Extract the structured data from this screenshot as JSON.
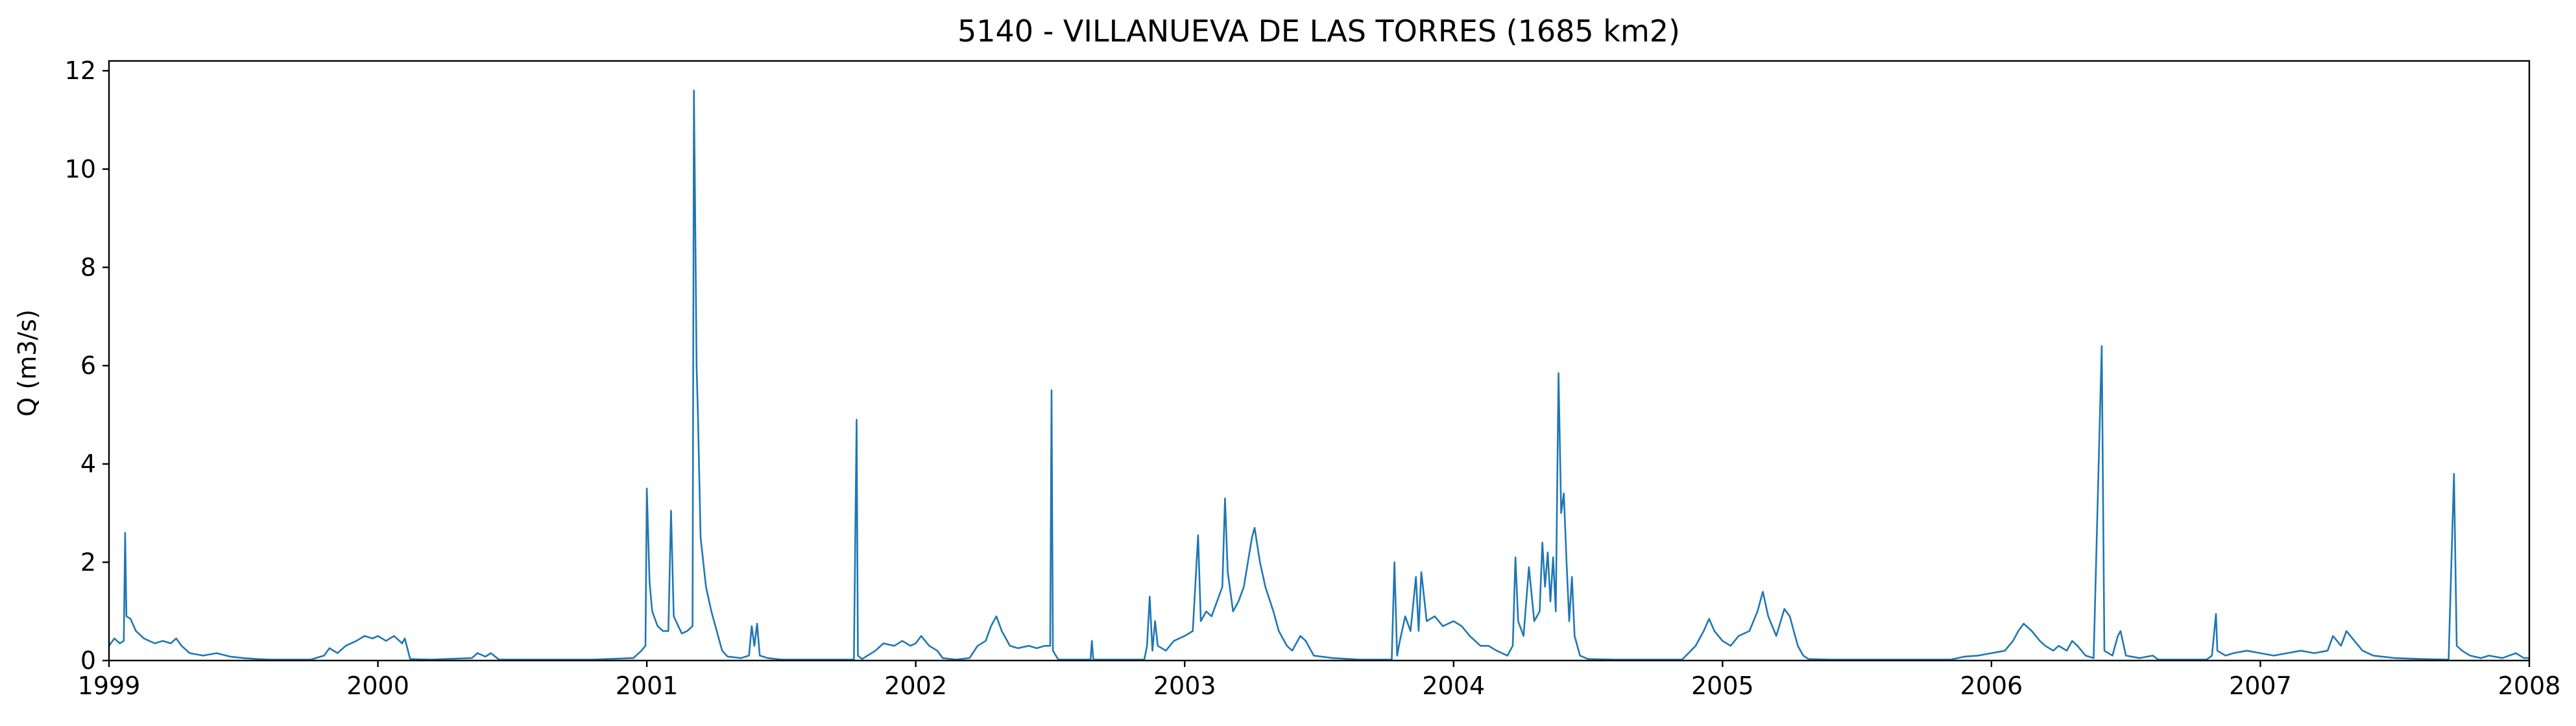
{
  "colors": {
    "series": "#1f77b4",
    "axes": "#000000",
    "background": "#ffffff"
  },
  "chart_data": {
    "type": "line",
    "title": "5140 - VILLANUEVA DE LAS TORRES (1685 km2)",
    "xlabel": "",
    "ylabel": "Q (m3/s)",
    "xlim": [
      1999.0,
      2008.0
    ],
    "ylim": [
      0,
      12.2
    ],
    "x_ticks": [
      1999,
      2000,
      2001,
      2002,
      2003,
      2004,
      2005,
      2006,
      2007,
      2008
    ],
    "x_tick_labels": [
      "1999",
      "2000",
      "2001",
      "2002",
      "2003",
      "2004",
      "2005",
      "2006",
      "2007",
      "2008"
    ],
    "y_ticks": [
      0,
      2,
      4,
      6,
      8,
      10,
      12
    ],
    "y_tick_labels": [
      "0",
      "2",
      "4",
      "6",
      "8",
      "10",
      "12"
    ],
    "grid": false,
    "legend": "none",
    "series": [
      {
        "points": [
          [
            1999.0,
            0.3
          ],
          [
            1999.02,
            0.45
          ],
          [
            1999.04,
            0.35
          ],
          [
            1999.055,
            0.4
          ],
          [
            1999.06,
            2.6
          ],
          [
            1999.065,
            0.9
          ],
          [
            1999.08,
            0.85
          ],
          [
            1999.1,
            0.6
          ],
          [
            1999.13,
            0.45
          ],
          [
            1999.17,
            0.35
          ],
          [
            1999.2,
            0.4
          ],
          [
            1999.23,
            0.35
          ],
          [
            1999.25,
            0.45
          ],
          [
            1999.27,
            0.3
          ],
          [
            1999.3,
            0.15
          ],
          [
            1999.35,
            0.1
          ],
          [
            1999.4,
            0.15
          ],
          [
            1999.45,
            0.08
          ],
          [
            1999.5,
            0.05
          ],
          [
            1999.55,
            0.03
          ],
          [
            1999.6,
            0.02
          ],
          [
            1999.75,
            0.02
          ],
          [
            1999.8,
            0.1
          ],
          [
            1999.82,
            0.25
          ],
          [
            1999.85,
            0.15
          ],
          [
            1999.88,
            0.3
          ],
          [
            1999.92,
            0.4
          ],
          [
            1999.95,
            0.5
          ],
          [
            1999.98,
            0.45
          ],
          [
            2000.0,
            0.5
          ],
          [
            2000.03,
            0.4
          ],
          [
            2000.06,
            0.5
          ],
          [
            2000.09,
            0.35
          ],
          [
            2000.1,
            0.45
          ],
          [
            2000.12,
            0.03
          ],
          [
            2000.2,
            0.02
          ],
          [
            2000.35,
            0.05
          ],
          [
            2000.37,
            0.15
          ],
          [
            2000.4,
            0.08
          ],
          [
            2000.42,
            0.15
          ],
          [
            2000.45,
            0.02
          ],
          [
            2000.8,
            0.02
          ],
          [
            2000.95,
            0.05
          ],
          [
            2000.98,
            0.2
          ],
          [
            2000.995,
            0.3
          ],
          [
            2001.0,
            3.5
          ],
          [
            2001.01,
            1.6
          ],
          [
            2001.02,
            1.0
          ],
          [
            2001.04,
            0.7
          ],
          [
            2001.06,
            0.6
          ],
          [
            2001.08,
            0.6
          ],
          [
            2001.09,
            3.05
          ],
          [
            2001.1,
            0.9
          ],
          [
            2001.13,
            0.55
          ],
          [
            2001.15,
            0.6
          ],
          [
            2001.17,
            0.7
          ],
          [
            2001.175,
            11.6
          ],
          [
            2001.18,
            9.0
          ],
          [
            2001.185,
            6.0
          ],
          [
            2001.19,
            5.0
          ],
          [
            2001.2,
            2.5
          ],
          [
            2001.22,
            1.5
          ],
          [
            2001.24,
            1.0
          ],
          [
            2001.26,
            0.6
          ],
          [
            2001.28,
            0.2
          ],
          [
            2001.3,
            0.08
          ],
          [
            2001.35,
            0.05
          ],
          [
            2001.38,
            0.1
          ],
          [
            2001.39,
            0.7
          ],
          [
            2001.4,
            0.3
          ],
          [
            2001.41,
            0.75
          ],
          [
            2001.42,
            0.1
          ],
          [
            2001.45,
            0.05
          ],
          [
            2001.5,
            0.02
          ],
          [
            2001.77,
            0.02
          ],
          [
            2001.78,
            4.9
          ],
          [
            2001.785,
            0.1
          ],
          [
            2001.8,
            0.03
          ],
          [
            2001.85,
            0.2
          ],
          [
            2001.88,
            0.35
          ],
          [
            2001.92,
            0.3
          ],
          [
            2001.95,
            0.4
          ],
          [
            2001.98,
            0.3
          ],
          [
            2002.0,
            0.35
          ],
          [
            2002.02,
            0.5
          ],
          [
            2002.05,
            0.3
          ],
          [
            2002.08,
            0.2
          ],
          [
            2002.1,
            0.05
          ],
          [
            2002.15,
            0.02
          ],
          [
            2002.2,
            0.05
          ],
          [
            2002.23,
            0.3
          ],
          [
            2002.26,
            0.4
          ],
          [
            2002.28,
            0.7
          ],
          [
            2002.3,
            0.9
          ],
          [
            2002.32,
            0.6
          ],
          [
            2002.35,
            0.3
          ],
          [
            2002.38,
            0.25
          ],
          [
            2002.42,
            0.3
          ],
          [
            2002.45,
            0.25
          ],
          [
            2002.48,
            0.3
          ],
          [
            2002.5,
            0.3
          ],
          [
            2002.505,
            5.5
          ],
          [
            2002.51,
            0.2
          ],
          [
            2002.53,
            0.02
          ],
          [
            2002.6,
            0.02
          ],
          [
            2002.65,
            0.02
          ],
          [
            2002.655,
            0.4
          ],
          [
            2002.66,
            0.02
          ],
          [
            2002.85,
            0.02
          ],
          [
            2002.86,
            0.3
          ],
          [
            2002.87,
            1.3
          ],
          [
            2002.88,
            0.2
          ],
          [
            2002.89,
            0.8
          ],
          [
            2002.9,
            0.3
          ],
          [
            2002.93,
            0.2
          ],
          [
            2002.96,
            0.4
          ],
          [
            2003.0,
            0.5
          ],
          [
            2003.03,
            0.6
          ],
          [
            2003.05,
            2.55
          ],
          [
            2003.06,
            0.8
          ],
          [
            2003.08,
            1.0
          ],
          [
            2003.1,
            0.9
          ],
          [
            2003.12,
            1.2
          ],
          [
            2003.14,
            1.5
          ],
          [
            2003.15,
            3.3
          ],
          [
            2003.16,
            1.8
          ],
          [
            2003.18,
            1.0
          ],
          [
            2003.2,
            1.2
          ],
          [
            2003.22,
            1.5
          ],
          [
            2003.25,
            2.5
          ],
          [
            2003.26,
            2.7
          ],
          [
            2003.28,
            2.0
          ],
          [
            2003.3,
            1.5
          ],
          [
            2003.33,
            1.0
          ],
          [
            2003.35,
            0.6
          ],
          [
            2003.38,
            0.3
          ],
          [
            2003.4,
            0.2
          ],
          [
            2003.43,
            0.5
          ],
          [
            2003.45,
            0.4
          ],
          [
            2003.48,
            0.1
          ],
          [
            2003.55,
            0.05
          ],
          [
            2003.65,
            0.02
          ],
          [
            2003.77,
            0.02
          ],
          [
            2003.78,
            2.0
          ],
          [
            2003.79,
            0.1
          ],
          [
            2003.8,
            0.4
          ],
          [
            2003.82,
            0.9
          ],
          [
            2003.84,
            0.6
          ],
          [
            2003.86,
            1.7
          ],
          [
            2003.87,
            0.6
          ],
          [
            2003.88,
            1.8
          ],
          [
            2003.9,
            0.8
          ],
          [
            2003.93,
            0.9
          ],
          [
            2003.96,
            0.7
          ],
          [
            2004.0,
            0.8
          ],
          [
            2004.03,
            0.7
          ],
          [
            2004.06,
            0.5
          ],
          [
            2004.1,
            0.3
          ],
          [
            2004.13,
            0.3
          ],
          [
            2004.16,
            0.2
          ],
          [
            2004.2,
            0.1
          ],
          [
            2004.22,
            0.3
          ],
          [
            2004.23,
            2.1
          ],
          [
            2004.24,
            0.8
          ],
          [
            2004.26,
            0.5
          ],
          [
            2004.28,
            1.9
          ],
          [
            2004.3,
            0.8
          ],
          [
            2004.32,
            1.0
          ],
          [
            2004.33,
            2.4
          ],
          [
            2004.34,
            1.5
          ],
          [
            2004.35,
            2.2
          ],
          [
            2004.36,
            1.2
          ],
          [
            2004.37,
            2.1
          ],
          [
            2004.38,
            1.0
          ],
          [
            2004.39,
            5.85
          ],
          [
            2004.4,
            3.0
          ],
          [
            2004.41,
            3.4
          ],
          [
            2004.42,
            2.0
          ],
          [
            2004.43,
            0.8
          ],
          [
            2004.44,
            1.7
          ],
          [
            2004.45,
            0.5
          ],
          [
            2004.47,
            0.1
          ],
          [
            2004.5,
            0.03
          ],
          [
            2004.6,
            0.02
          ],
          [
            2004.85,
            0.02
          ],
          [
            2004.9,
            0.3
          ],
          [
            2004.93,
            0.6
          ],
          [
            2004.95,
            0.85
          ],
          [
            2004.97,
            0.6
          ],
          [
            2005.0,
            0.4
          ],
          [
            2005.03,
            0.3
          ],
          [
            2005.06,
            0.5
          ],
          [
            2005.1,
            0.6
          ],
          [
            2005.13,
            1.0
          ],
          [
            2005.15,
            1.4
          ],
          [
            2005.17,
            0.9
          ],
          [
            2005.2,
            0.5
          ],
          [
            2005.23,
            1.05
          ],
          [
            2005.25,
            0.9
          ],
          [
            2005.28,
            0.3
          ],
          [
            2005.3,
            0.1
          ],
          [
            2005.32,
            0.03
          ],
          [
            2005.4,
            0.02
          ],
          [
            2005.85,
            0.02
          ],
          [
            2005.9,
            0.08
          ],
          [
            2005.95,
            0.1
          ],
          [
            2006.0,
            0.15
          ],
          [
            2006.05,
            0.2
          ],
          [
            2006.08,
            0.4
          ],
          [
            2006.1,
            0.6
          ],
          [
            2006.12,
            0.75
          ],
          [
            2006.15,
            0.6
          ],
          [
            2006.18,
            0.4
          ],
          [
            2006.2,
            0.3
          ],
          [
            2006.23,
            0.2
          ],
          [
            2006.25,
            0.3
          ],
          [
            2006.28,
            0.2
          ],
          [
            2006.3,
            0.4
          ],
          [
            2006.32,
            0.3
          ],
          [
            2006.35,
            0.1
          ],
          [
            2006.38,
            0.05
          ],
          [
            2006.41,
            6.4
          ],
          [
            2006.42,
            0.2
          ],
          [
            2006.45,
            0.1
          ],
          [
            2006.47,
            0.5
          ],
          [
            2006.48,
            0.6
          ],
          [
            2006.5,
            0.1
          ],
          [
            2006.55,
            0.05
          ],
          [
            2006.6,
            0.1
          ],
          [
            2006.62,
            0.02
          ],
          [
            2006.8,
            0.02
          ],
          [
            2006.82,
            0.1
          ],
          [
            2006.835,
            0.95
          ],
          [
            2006.84,
            0.2
          ],
          [
            2006.87,
            0.1
          ],
          [
            2006.9,
            0.15
          ],
          [
            2006.95,
            0.2
          ],
          [
            2007.0,
            0.15
          ],
          [
            2007.05,
            0.1
          ],
          [
            2007.1,
            0.15
          ],
          [
            2007.15,
            0.2
          ],
          [
            2007.2,
            0.15
          ],
          [
            2007.25,
            0.2
          ],
          [
            2007.27,
            0.5
          ],
          [
            2007.3,
            0.3
          ],
          [
            2007.32,
            0.6
          ],
          [
            2007.35,
            0.4
          ],
          [
            2007.38,
            0.2
          ],
          [
            2007.42,
            0.1
          ],
          [
            2007.5,
            0.05
          ],
          [
            2007.6,
            0.03
          ],
          [
            2007.7,
            0.02
          ],
          [
            2007.72,
            3.8
          ],
          [
            2007.73,
            0.3
          ],
          [
            2007.75,
            0.2
          ],
          [
            2007.78,
            0.1
          ],
          [
            2007.82,
            0.05
          ],
          [
            2007.85,
            0.1
          ],
          [
            2007.9,
            0.05
          ],
          [
            2007.95,
            0.15
          ],
          [
            2007.98,
            0.05
          ],
          [
            2008.0,
            0.05
          ]
        ]
      }
    ]
  }
}
